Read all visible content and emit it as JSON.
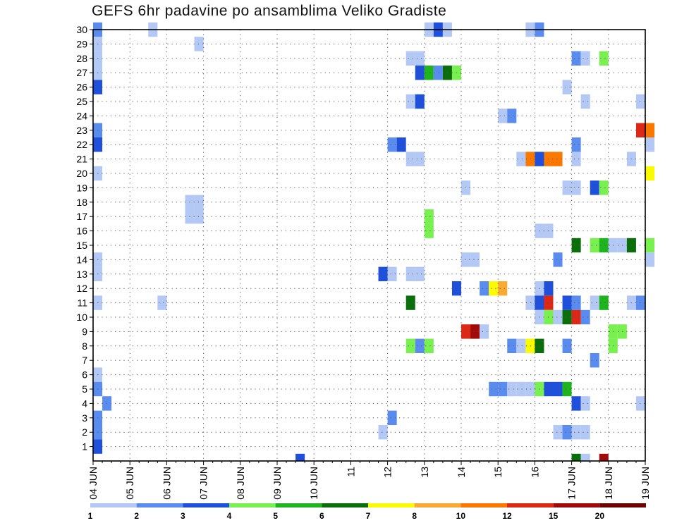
{
  "title": "GEFS 6hr padavine po ansamblima Veliko Gradiste",
  "chart_data": {
    "type": "heatmap",
    "title": "GEFS 6hr padavine po ansamblima Veliko Gradiste",
    "xlabel": "",
    "ylabel": "",
    "x_tick_labels": [
      "04 JUN",
      "05 JUN",
      "06 JUN",
      "07 JUN",
      "08 JUN",
      "09 JUN",
      "10 JUN",
      "11",
      "12",
      "13",
      "14",
      "15",
      "16",
      "17 JUN",
      "18 JUN",
      "19 JUN"
    ],
    "y_tick_labels": [
      "1",
      "2",
      "3",
      "4",
      "5",
      "6",
      "7",
      "8",
      "9",
      "10",
      "11",
      "12",
      "13",
      "14",
      "15",
      "16",
      "17",
      "18",
      "19",
      "20",
      "21",
      "22",
      "23",
      "24",
      "25",
      "26",
      "27",
      "28",
      "29",
      "30"
    ],
    "ylim": [
      0,
      30
    ],
    "time_steps_per_day": 4,
    "grid": true,
    "colorbar": {
      "placement": "bottom",
      "labels": [
        "1",
        "2",
        "3",
        "4",
        "5",
        "6",
        "7",
        "8",
        "10",
        "12",
        "15",
        "20"
      ],
      "colors": [
        "#b4c8f5",
        "#5a8cf0",
        "#1e50dc",
        "#78f050",
        "#1eb41e",
        "#0a6e0a",
        "#fafa00",
        "#faaa32",
        "#fa7800",
        "#dc2814",
        "#a00a0a",
        "#6e0000"
      ]
    },
    "cells": [
      {
        "member": 30,
        "day": "04 JUN",
        "step": 0,
        "mm": 2.5
      },
      {
        "member": 30,
        "day": "05 JUN",
        "step": 2,
        "mm": 1.5
      },
      {
        "member": 30,
        "day": "13",
        "step": 0,
        "mm": 1.5
      },
      {
        "member": 30,
        "day": "13",
        "step": 1,
        "mm": 3.5
      },
      {
        "member": 30,
        "day": "13",
        "step": 2,
        "mm": 1.5
      },
      {
        "member": 30,
        "day": "15",
        "step": 3,
        "mm": 1.5
      },
      {
        "member": 30,
        "day": "16",
        "step": 0,
        "mm": 2.5
      },
      {
        "member": 29,
        "day": "04 JUN",
        "step": 0,
        "mm": 1.5
      },
      {
        "member": 29,
        "day": "06 JUN",
        "step": 3,
        "mm": 1.5
      },
      {
        "member": 28,
        "day": "04 JUN",
        "step": 0,
        "mm": 1.5
      },
      {
        "member": 28,
        "day": "12",
        "step": 2,
        "mm": 1.5
      },
      {
        "member": 28,
        "day": "12",
        "step": 3,
        "mm": 1.5
      },
      {
        "member": 28,
        "day": "17 JUN",
        "step": 0,
        "mm": 2.5
      },
      {
        "member": 28,
        "day": "17 JUN",
        "step": 1,
        "mm": 1.5
      },
      {
        "member": 28,
        "day": "17 JUN",
        "step": 3,
        "mm": 4.5
      },
      {
        "member": 27,
        "day": "04 JUN",
        "step": 0,
        "mm": 1.5
      },
      {
        "member": 27,
        "day": "12",
        "step": 3,
        "mm": 3.5
      },
      {
        "member": 27,
        "day": "13",
        "step": 0,
        "mm": 5.5
      },
      {
        "member": 27,
        "day": "13",
        "step": 1,
        "mm": 2.5
      },
      {
        "member": 27,
        "day": "13",
        "step": 2,
        "mm": 6.5
      },
      {
        "member": 27,
        "day": "13",
        "step": 3,
        "mm": 4.5
      },
      {
        "member": 26,
        "day": "04 JUN",
        "step": 0,
        "mm": 3.5
      },
      {
        "member": 26,
        "day": "16",
        "step": 3,
        "mm": 1.5
      },
      {
        "member": 25,
        "day": "12",
        "step": 2,
        "mm": 1.5
      },
      {
        "member": 25,
        "day": "12",
        "step": 3,
        "mm": 3.5
      },
      {
        "member": 25,
        "day": "17 JUN",
        "step": 1,
        "mm": 1.5
      },
      {
        "member": 25,
        "day": "18 JUN",
        "step": 3,
        "mm": 1.5
      },
      {
        "member": 24,
        "day": "15",
        "step": 0,
        "mm": 1.5
      },
      {
        "member": 24,
        "day": "15",
        "step": 1,
        "mm": 2.5
      },
      {
        "member": 23,
        "day": "04 JUN",
        "step": 0,
        "mm": 2.5
      },
      {
        "member": 23,
        "day": "18 JUN",
        "step": 3,
        "mm": 13
      },
      {
        "member": 23,
        "day": "19 JUN",
        "step": 0,
        "mm": 11
      },
      {
        "member": 22,
        "day": "04 JUN",
        "step": 0,
        "mm": 3.5
      },
      {
        "member": 22,
        "day": "12",
        "step": 0,
        "mm": 2.5
      },
      {
        "member": 22,
        "day": "12",
        "step": 1,
        "mm": 3.5
      },
      {
        "member": 22,
        "day": "17 JUN",
        "step": 0,
        "mm": 2.5
      },
      {
        "member": 22,
        "day": "19 JUN",
        "step": 0,
        "mm": 1.5
      },
      {
        "member": 21,
        "day": "12",
        "step": 2,
        "mm": 1.5
      },
      {
        "member": 21,
        "day": "12",
        "step": 3,
        "mm": 1.5
      },
      {
        "member": 21,
        "day": "15",
        "step": 2,
        "mm": 1.5
      },
      {
        "member": 21,
        "day": "15",
        "step": 3,
        "mm": 11
      },
      {
        "member": 21,
        "day": "16",
        "step": 0,
        "mm": 3.5
      },
      {
        "member": 21,
        "day": "16",
        "step": 1,
        "mm": 11
      },
      {
        "member": 21,
        "day": "16",
        "step": 2,
        "mm": 11
      },
      {
        "member": 21,
        "day": "17 JUN",
        "step": 0,
        "mm": 1.5
      },
      {
        "member": 21,
        "day": "18 JUN",
        "step": 2,
        "mm": 1.5
      },
      {
        "member": 20,
        "day": "04 JUN",
        "step": 0,
        "mm": 1.5
      },
      {
        "member": 20,
        "day": "19 JUN",
        "step": 0,
        "mm": 7.5
      },
      {
        "member": 19,
        "day": "14",
        "step": 0,
        "mm": 1.5
      },
      {
        "member": 19,
        "day": "16",
        "step": 3,
        "mm": 1.5
      },
      {
        "member": 19,
        "day": "17 JUN",
        "step": 0,
        "mm": 1.5
      },
      {
        "member": 19,
        "day": "17 JUN",
        "step": 2,
        "mm": 3.5
      },
      {
        "member": 19,
        "day": "17 JUN",
        "step": 3,
        "mm": 4.5
      },
      {
        "member": 18,
        "day": "06 JUN",
        "step": 2,
        "mm": 1.5
      },
      {
        "member": 18,
        "day": "06 JUN",
        "step": 3,
        "mm": 1.5
      },
      {
        "member": 17,
        "day": "06 JUN",
        "step": 2,
        "mm": 1.5
      },
      {
        "member": 17,
        "day": "06 JUN",
        "step": 3,
        "mm": 1.5
      },
      {
        "member": 17,
        "day": "13",
        "step": 0,
        "mm": 4.5
      },
      {
        "member": 16,
        "day": "13",
        "step": 0,
        "mm": 4.5
      },
      {
        "member": 16,
        "day": "16",
        "step": 0,
        "mm": 1.5
      },
      {
        "member": 16,
        "day": "16",
        "step": 1,
        "mm": 1.5
      },
      {
        "member": 15,
        "day": "17 JUN",
        "step": 0,
        "mm": 6.5
      },
      {
        "member": 15,
        "day": "17 JUN",
        "step": 2,
        "mm": 4.5
      },
      {
        "member": 15,
        "day": "17 JUN",
        "step": 3,
        "mm": 5.5
      },
      {
        "member": 15,
        "day": "18 JUN",
        "step": 0,
        "mm": 1.5
      },
      {
        "member": 15,
        "day": "18 JUN",
        "step": 1,
        "mm": 1.5
      },
      {
        "member": 15,
        "day": "18 JUN",
        "step": 2,
        "mm": 6.5
      },
      {
        "member": 15,
        "day": "19 JUN",
        "step": 0,
        "mm": 4.5
      },
      {
        "member": 14,
        "day": "04 JUN",
        "step": 0,
        "mm": 1.5
      },
      {
        "member": 14,
        "day": "14",
        "step": 0,
        "mm": 1.5
      },
      {
        "member": 14,
        "day": "14",
        "step": 1,
        "mm": 1.5
      },
      {
        "member": 14,
        "day": "16",
        "step": 2,
        "mm": 2.5
      },
      {
        "member": 14,
        "day": "19 JUN",
        "step": 0,
        "mm": 1.5
      },
      {
        "member": 13,
        "day": "04 JUN",
        "step": 0,
        "mm": 1.5
      },
      {
        "member": 13,
        "day": "11",
        "step": 3,
        "mm": 3.5
      },
      {
        "member": 13,
        "day": "12",
        "step": 0,
        "mm": 1.5
      },
      {
        "member": 13,
        "day": "12",
        "step": 2,
        "mm": 1.5
      },
      {
        "member": 13,
        "day": "12",
        "step": 3,
        "mm": 1.5
      },
      {
        "member": 12,
        "day": "13",
        "step": 3,
        "mm": 3.5
      },
      {
        "member": 12,
        "day": "14",
        "step": 2,
        "mm": 2.5
      },
      {
        "member": 12,
        "day": "14",
        "step": 3,
        "mm": 7.5
      },
      {
        "member": 12,
        "day": "15",
        "step": 0,
        "mm": 9
      },
      {
        "member": 12,
        "day": "16",
        "step": 0,
        "mm": 1.5
      },
      {
        "member": 12,
        "day": "16",
        "step": 1,
        "mm": 3.5
      },
      {
        "member": 11,
        "day": "04 JUN",
        "step": 0,
        "mm": 1.5
      },
      {
        "member": 11,
        "day": "05 JUN",
        "step": 3,
        "mm": 1.5
      },
      {
        "member": 11,
        "day": "12",
        "step": 2,
        "mm": 6.5
      },
      {
        "member": 11,
        "day": "15",
        "step": 3,
        "mm": 1.5
      },
      {
        "member": 11,
        "day": "16",
        "step": 0,
        "mm": 3.5
      },
      {
        "member": 11,
        "day": "16",
        "step": 1,
        "mm": 13
      },
      {
        "member": 11,
        "day": "16",
        "step": 3,
        "mm": 3.5
      },
      {
        "member": 11,
        "day": "17 JUN",
        "step": 0,
        "mm": 2.5
      },
      {
        "member": 11,
        "day": "17 JUN",
        "step": 2,
        "mm": 1.5
      },
      {
        "member": 11,
        "day": "17 JUN",
        "step": 3,
        "mm": 5.5
      },
      {
        "member": 11,
        "day": "18 JUN",
        "step": 2,
        "mm": 1.5
      },
      {
        "member": 11,
        "day": "18 JUN",
        "step": 3,
        "mm": 2.5
      },
      {
        "member": 10,
        "day": "16",
        "step": 0,
        "mm": 1.5
      },
      {
        "member": 10,
        "day": "16",
        "step": 1,
        "mm": 4.5
      },
      {
        "member": 10,
        "day": "16",
        "step": 2,
        "mm": 1.5
      },
      {
        "member": 10,
        "day": "16",
        "step": 3,
        "mm": 6.5
      },
      {
        "member": 10,
        "day": "17 JUN",
        "step": 0,
        "mm": 13
      },
      {
        "member": 10,
        "day": "17 JUN",
        "step": 1,
        "mm": 2.5
      },
      {
        "member": 9,
        "day": "14",
        "step": 0,
        "mm": 13
      },
      {
        "member": 9,
        "day": "14",
        "step": 1,
        "mm": 17
      },
      {
        "member": 9,
        "day": "14",
        "step": 2,
        "mm": 1.5
      },
      {
        "member": 9,
        "day": "18 JUN",
        "step": 0,
        "mm": 4.5
      },
      {
        "member": 9,
        "day": "18 JUN",
        "step": 1,
        "mm": 4.5
      },
      {
        "member": 8,
        "day": "12",
        "step": 2,
        "mm": 4.5
      },
      {
        "member": 8,
        "day": "12",
        "step": 3,
        "mm": 2.5
      },
      {
        "member": 8,
        "day": "13",
        "step": 0,
        "mm": 4.5
      },
      {
        "member": 8,
        "day": "15",
        "step": 1,
        "mm": 2.5
      },
      {
        "member": 8,
        "day": "15",
        "step": 2,
        "mm": 1.5
      },
      {
        "member": 8,
        "day": "15",
        "step": 3,
        "mm": 7.5
      },
      {
        "member": 8,
        "day": "16",
        "step": 0,
        "mm": 6.5
      },
      {
        "member": 8,
        "day": "16",
        "step": 3,
        "mm": 2.5
      },
      {
        "member": 8,
        "day": "18 JUN",
        "step": 0,
        "mm": 4.5
      },
      {
        "member": 7,
        "day": "17 JUN",
        "step": 2,
        "mm": 2.5
      },
      {
        "member": 6,
        "day": "04 JUN",
        "step": 0,
        "mm": 1.5
      },
      {
        "member": 5,
        "day": "04 JUN",
        "step": 0,
        "mm": 2.5
      },
      {
        "member": 5,
        "day": "14",
        "step": 3,
        "mm": 2.5
      },
      {
        "member": 5,
        "day": "15",
        "step": 0,
        "mm": 2.5
      },
      {
        "member": 5,
        "day": "15",
        "step": 1,
        "mm": 1.5
      },
      {
        "member": 5,
        "day": "15",
        "step": 2,
        "mm": 1.5
      },
      {
        "member": 5,
        "day": "15",
        "step": 3,
        "mm": 1.5
      },
      {
        "member": 5,
        "day": "16",
        "step": 0,
        "mm": 4.5
      },
      {
        "member": 5,
        "day": "16",
        "step": 1,
        "mm": 3.5
      },
      {
        "member": 5,
        "day": "16",
        "step": 2,
        "mm": 3.5
      },
      {
        "member": 5,
        "day": "16",
        "step": 3,
        "mm": 5.5
      },
      {
        "member": 4,
        "day": "04 JUN",
        "step": 1,
        "mm": 2.5
      },
      {
        "member": 4,
        "day": "17 JUN",
        "step": 0,
        "mm": 3.5
      },
      {
        "member": 4,
        "day": "17 JUN",
        "step": 1,
        "mm": 1.5
      },
      {
        "member": 4,
        "day": "18 JUN",
        "step": 3,
        "mm": 1.5
      },
      {
        "member": 3,
        "day": "04 JUN",
        "step": 0,
        "mm": 2.5
      },
      {
        "member": 3,
        "day": "12",
        "step": 0,
        "mm": 2.5
      },
      {
        "member": 2,
        "day": "04 JUN",
        "step": 0,
        "mm": 2.5
      },
      {
        "member": 2,
        "day": "11",
        "step": 3,
        "mm": 1.5
      },
      {
        "member": 2,
        "day": "16",
        "step": 2,
        "mm": 1.5
      },
      {
        "member": 2,
        "day": "16",
        "step": 3,
        "mm": 2.5
      },
      {
        "member": 2,
        "day": "17 JUN",
        "step": 0,
        "mm": 1.5
      },
      {
        "member": 2,
        "day": "17 JUN",
        "step": 1,
        "mm": 1.5
      },
      {
        "member": 1,
        "day": "04 JUN",
        "step": 0,
        "mm": 3.5
      },
      {
        "member": 0,
        "day": "09 JUN",
        "step": 2,
        "mm": 3.5
      },
      {
        "member": 0,
        "day": "17 JUN",
        "step": 3,
        "mm": 17
      },
      {
        "member": 0,
        "day": "17 JUN",
        "step": 0,
        "mm": 6.5
      },
      {
        "member": 0,
        "day": "17 JUN",
        "step": 1,
        "mm": 1.5
      }
    ]
  }
}
